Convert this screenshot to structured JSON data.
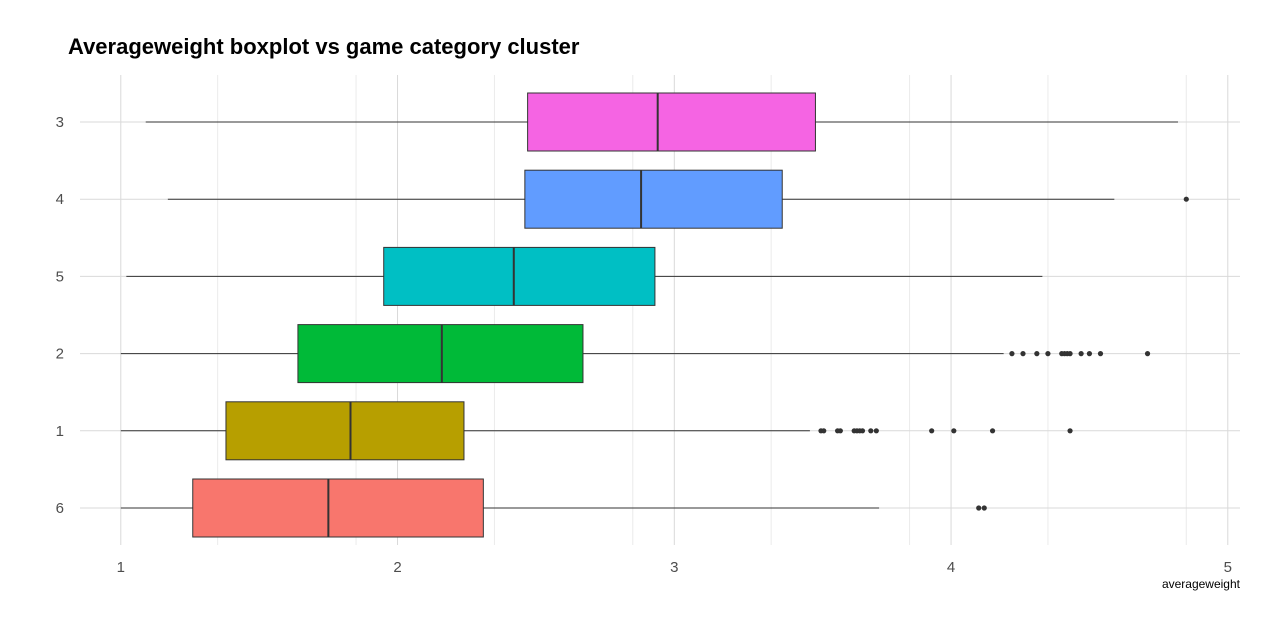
{
  "chart_data": {
    "type": "boxplot",
    "orientation": "horizontal",
    "title": "Averageweight boxplot vs game category cluster",
    "xlabel": "averageweight",
    "ylabel": "",
    "xlim": [
      0.85,
      5.05
    ],
    "x_ticks": [
      1,
      2,
      3,
      4,
      5
    ],
    "grid": true,
    "legend": "none",
    "categories": [
      "3",
      "4",
      "5",
      "2",
      "1",
      "6"
    ],
    "series": [
      {
        "category": "3",
        "color": "#f564e3",
        "whisker_low": 1.09,
        "q1": 2.47,
        "median": 2.94,
        "q3": 3.51,
        "whisker_high": 4.82,
        "outliers": []
      },
      {
        "category": "4",
        "color": "#619cff",
        "whisker_low": 1.17,
        "q1": 2.46,
        "median": 2.88,
        "q3": 3.39,
        "whisker_high": 4.59,
        "outliers": [
          4.85
        ]
      },
      {
        "category": "5",
        "color": "#00bfc4",
        "whisker_low": 1.02,
        "q1": 1.95,
        "median": 2.42,
        "q3": 2.93,
        "whisker_high": 4.33,
        "outliers": []
      },
      {
        "category": "2",
        "color": "#00ba38",
        "whisker_low": 1.0,
        "q1": 1.64,
        "median": 2.16,
        "q3": 2.67,
        "whisker_high": 4.19,
        "outliers": [
          4.22,
          4.26,
          4.31,
          4.35,
          4.4,
          4.41,
          4.42,
          4.43,
          4.47,
          4.5,
          4.54,
          4.71
        ]
      },
      {
        "category": "1",
        "color": "#b79f00",
        "whisker_low": 1.0,
        "q1": 1.38,
        "median": 1.83,
        "q3": 2.24,
        "whisker_high": 3.49,
        "outliers": [
          3.53,
          3.54,
          3.59,
          3.6,
          3.65,
          3.66,
          3.67,
          3.68,
          3.71,
          3.73,
          3.93,
          4.01,
          4.15,
          4.43
        ]
      },
      {
        "category": "6",
        "color": "#f8766d",
        "whisker_low": 1.0,
        "q1": 1.26,
        "median": 1.75,
        "q3": 2.31,
        "whisker_high": 3.74,
        "outliers": [
          4.1,
          4.12
        ]
      }
    ]
  }
}
